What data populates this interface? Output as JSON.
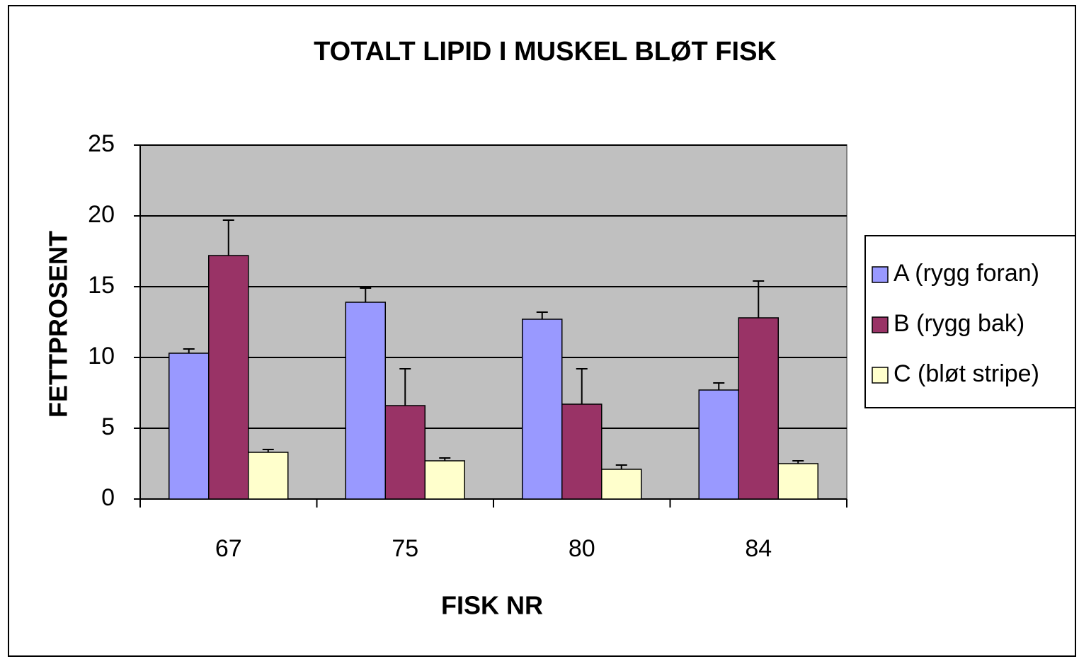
{
  "chart_data": {
    "type": "bar",
    "title": "TOTALT LIPID I MUSKEL BLØT FISK",
    "xlabel": "FISK NR",
    "ylabel": "FETTPROSENT",
    "categories": [
      "67",
      "75",
      "80",
      "84"
    ],
    "series": [
      {
        "name": "A (rygg foran)",
        "color": "#9999ff",
        "values": [
          10.3,
          13.9,
          12.7,
          7.7
        ],
        "errors": [
          0.3,
          1.0,
          0.5,
          0.5
        ]
      },
      {
        "name": "B (rygg bak)",
        "color": "#993366",
        "values": [
          17.2,
          6.6,
          6.7,
          12.8
        ],
        "errors": [
          2.5,
          2.6,
          2.5,
          2.6
        ]
      },
      {
        "name": "C (bløt stripe)",
        "color": "#ffffcc",
        "values": [
          3.3,
          2.7,
          2.1,
          2.5
        ],
        "errors": [
          0.2,
          0.2,
          0.3,
          0.2
        ]
      }
    ],
    "ylim": [
      0,
      25
    ],
    "yticks": [
      0,
      5,
      10,
      15,
      20,
      25
    ],
    "grid": true,
    "legend": "right"
  }
}
